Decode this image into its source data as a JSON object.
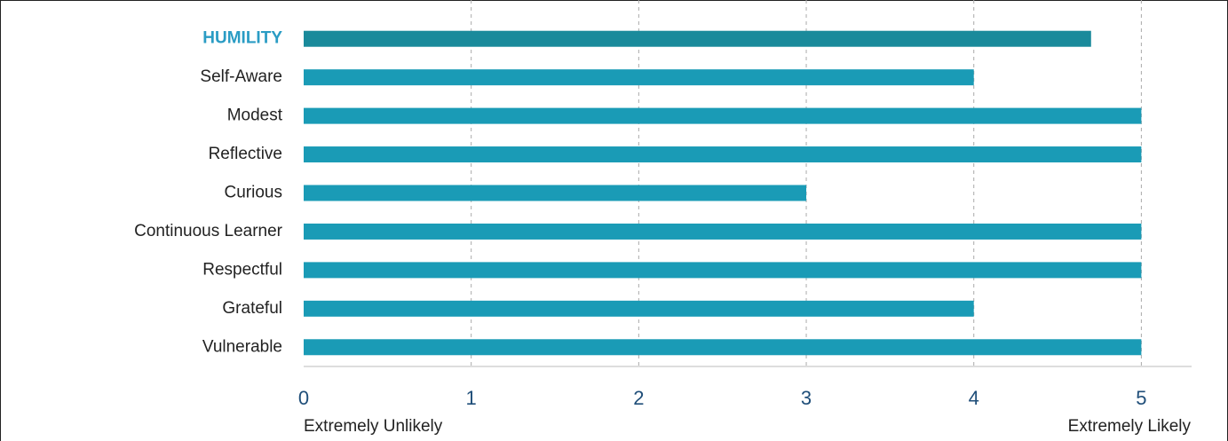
{
  "chart_data": {
    "type": "hbar",
    "categories": [
      "HUMILITY",
      "Self-Aware",
      "Modest",
      "Reflective",
      "Curious",
      "Continuous Learner",
      "Respectful",
      "Grateful",
      "Vulnerable"
    ],
    "values": [
      4.7,
      4,
      5,
      5,
      3,
      5,
      5,
      4,
      5
    ],
    "colors": [
      "#1a8a9b",
      "#1a9bb6",
      "#1a9bb6",
      "#1a9bb6",
      "#1a9bb6",
      "#1a9bb6",
      "#1a9bb6",
      "#1a9bb6",
      "#1a9bb6"
    ],
    "label_colors": [
      "#2a9cc4",
      "#222222",
      "#222222",
      "#222222",
      "#222222",
      "#222222",
      "#222222",
      "#222222",
      "#222222"
    ],
    "bold_labels": [
      true,
      false,
      false,
      false,
      false,
      false,
      false,
      false,
      false
    ],
    "xlim": [
      0,
      5.3
    ],
    "xticks": [
      0,
      1,
      2,
      3,
      4,
      5
    ],
    "tick_color": "#1f4e79",
    "grid": true,
    "axis_notes": {
      "left": "Extremely Unlikely",
      "right": "Extremely Likely"
    }
  }
}
